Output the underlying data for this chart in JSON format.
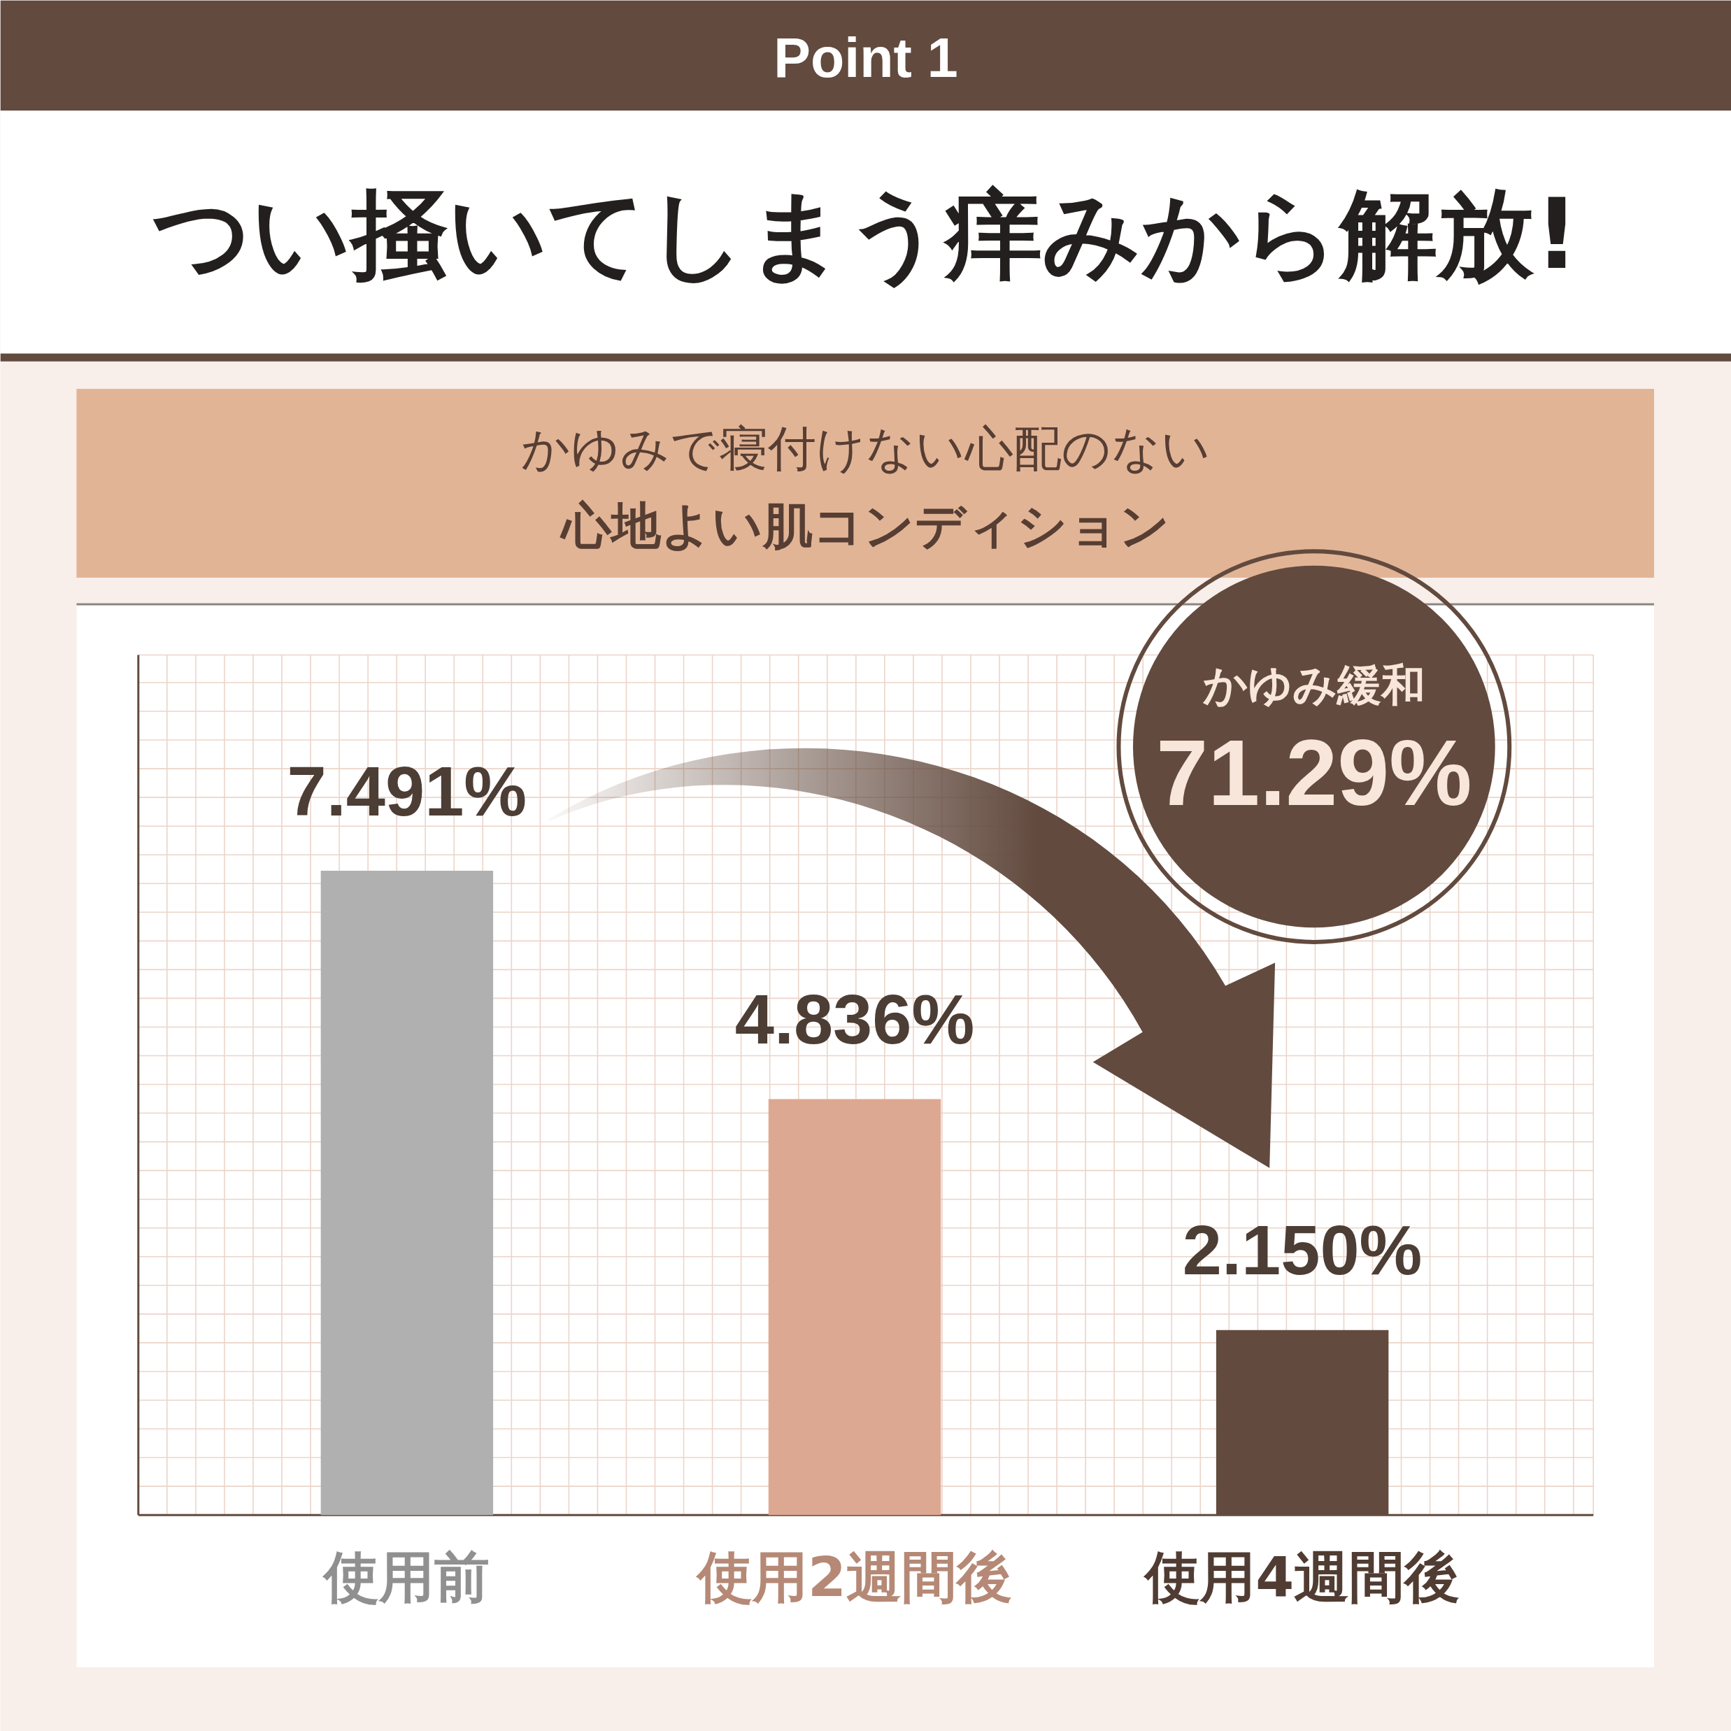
{
  "chart_data": {
    "type": "bar",
    "title": "つい掻いてしまう痒みから解放!",
    "subtitle": "かゆみで寝付けない心配のない",
    "categories": [
      "使用前",
      "使用2週間後",
      "使用4週間後"
    ],
    "values": [
      7.491,
      4.836,
      2.15
    ],
    "colors": [
      "#b0b0b0",
      "#dda891",
      "#624a3e"
    ],
    "value_labels": [
      "7.491%",
      "4.836%",
      "2.150%"
    ],
    "ylim": [
      0,
      10
    ],
    "grid": true,
    "tick_labels": "x",
    "annotations": [
      "Point 1",
      "心地よい肌コンディション",
      "かゆみ緩和",
      "71.29%"
    ]
  }
}
